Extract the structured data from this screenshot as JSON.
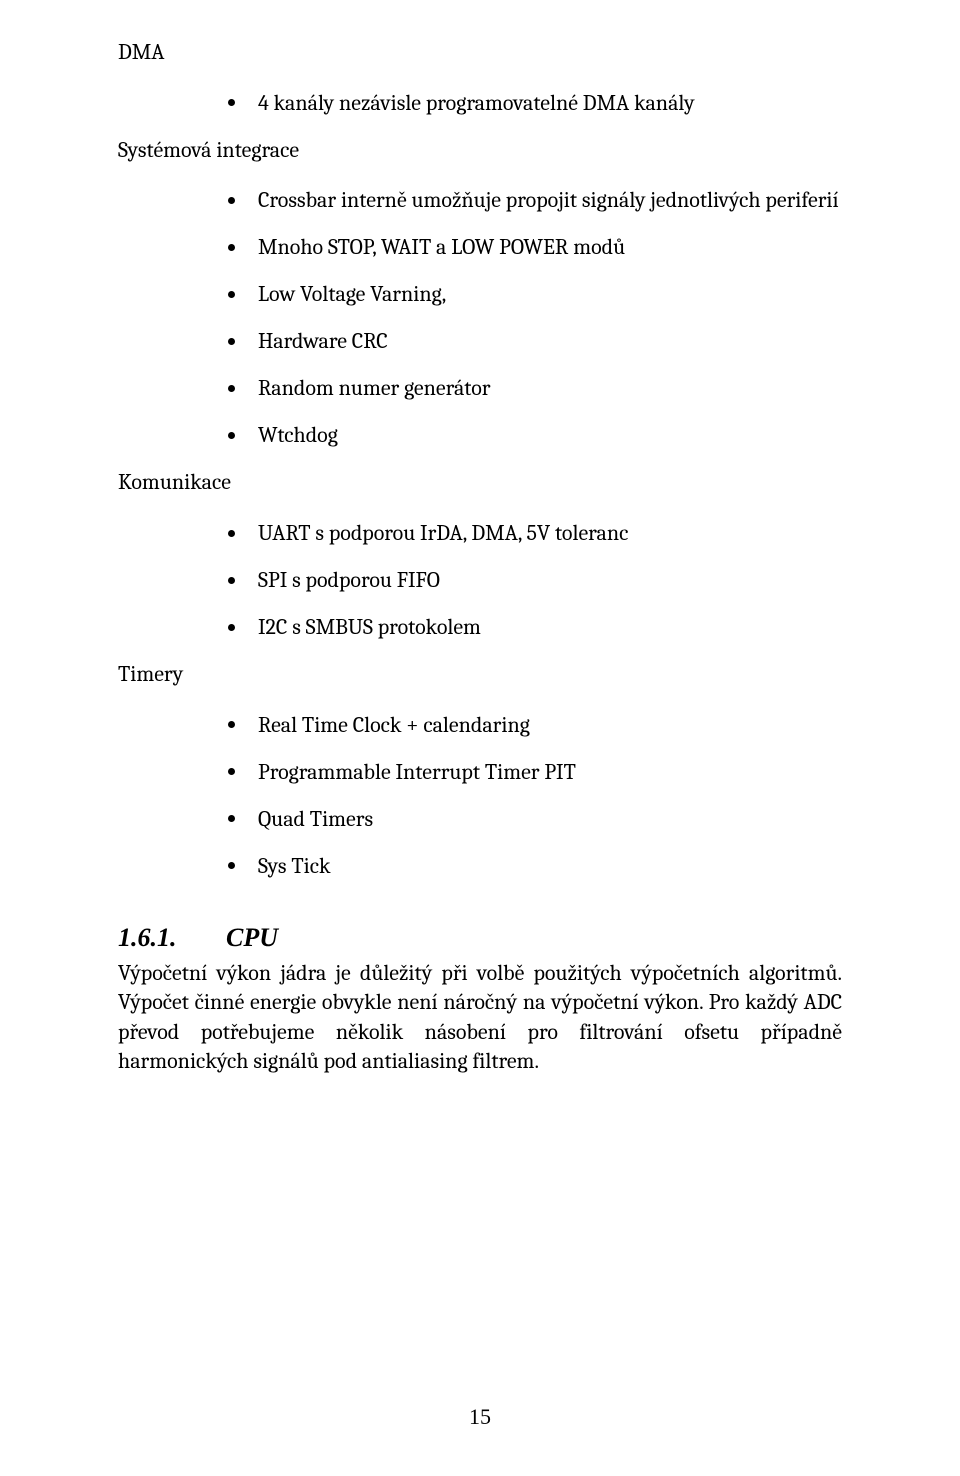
{
  "colors": {
    "text": "#000000",
    "background": "#ffffff",
    "bullet": "#000000"
  },
  "typography": {
    "body_family": "Cambria, Georgia, serif",
    "body_size_pt": 12,
    "heading_family": "Times New Roman",
    "heading_style": "italic bold",
    "heading_size_pt": 14
  },
  "h_dma": "DMA",
  "list_dma": {
    "i0": "4 kanály nezávisle programovatelné DMA kanály"
  },
  "h_sys": "Systémová integrace",
  "list_sys": {
    "i0": "Crossbar interně umožňuje propojit signály jednotlivých periferií",
    "i1": "Mnoho STOP, WAIT a LOW POWER modů",
    "i2": "Low Voltage Varning,",
    "i3": "Hardware CRC",
    "i4": "Random numer generátor",
    "i5": "Wtchdog"
  },
  "h_kom": "Komunikace",
  "list_kom": {
    "i0": "UART s podporou IrDA, DMA, 5V toleranc",
    "i1": "SPI s podporou FIFO",
    "i2": "I2C s SMBUS protokolem"
  },
  "h_tim": "Timery",
  "list_tim": {
    "i0": "Real Time Clock + calendaring",
    "i1": "Programmable Interrupt Timer PIT",
    "i2": "Quad Timers",
    "i3": "Sys Tick"
  },
  "section": {
    "num": "1.6.1.",
    "title": "CPU",
    "para": "Výpočetní výkon jádra je důležitý při volbě použitých výpočetních algoritmů. Výpočet činné energie obvykle není náročný na výpočetní výkon. Pro každý ADC převod potřebujeme několik násobení pro filtrování ofsetu případně harmonických signálů pod antialiasing filtrem."
  },
  "page_number": "15"
}
